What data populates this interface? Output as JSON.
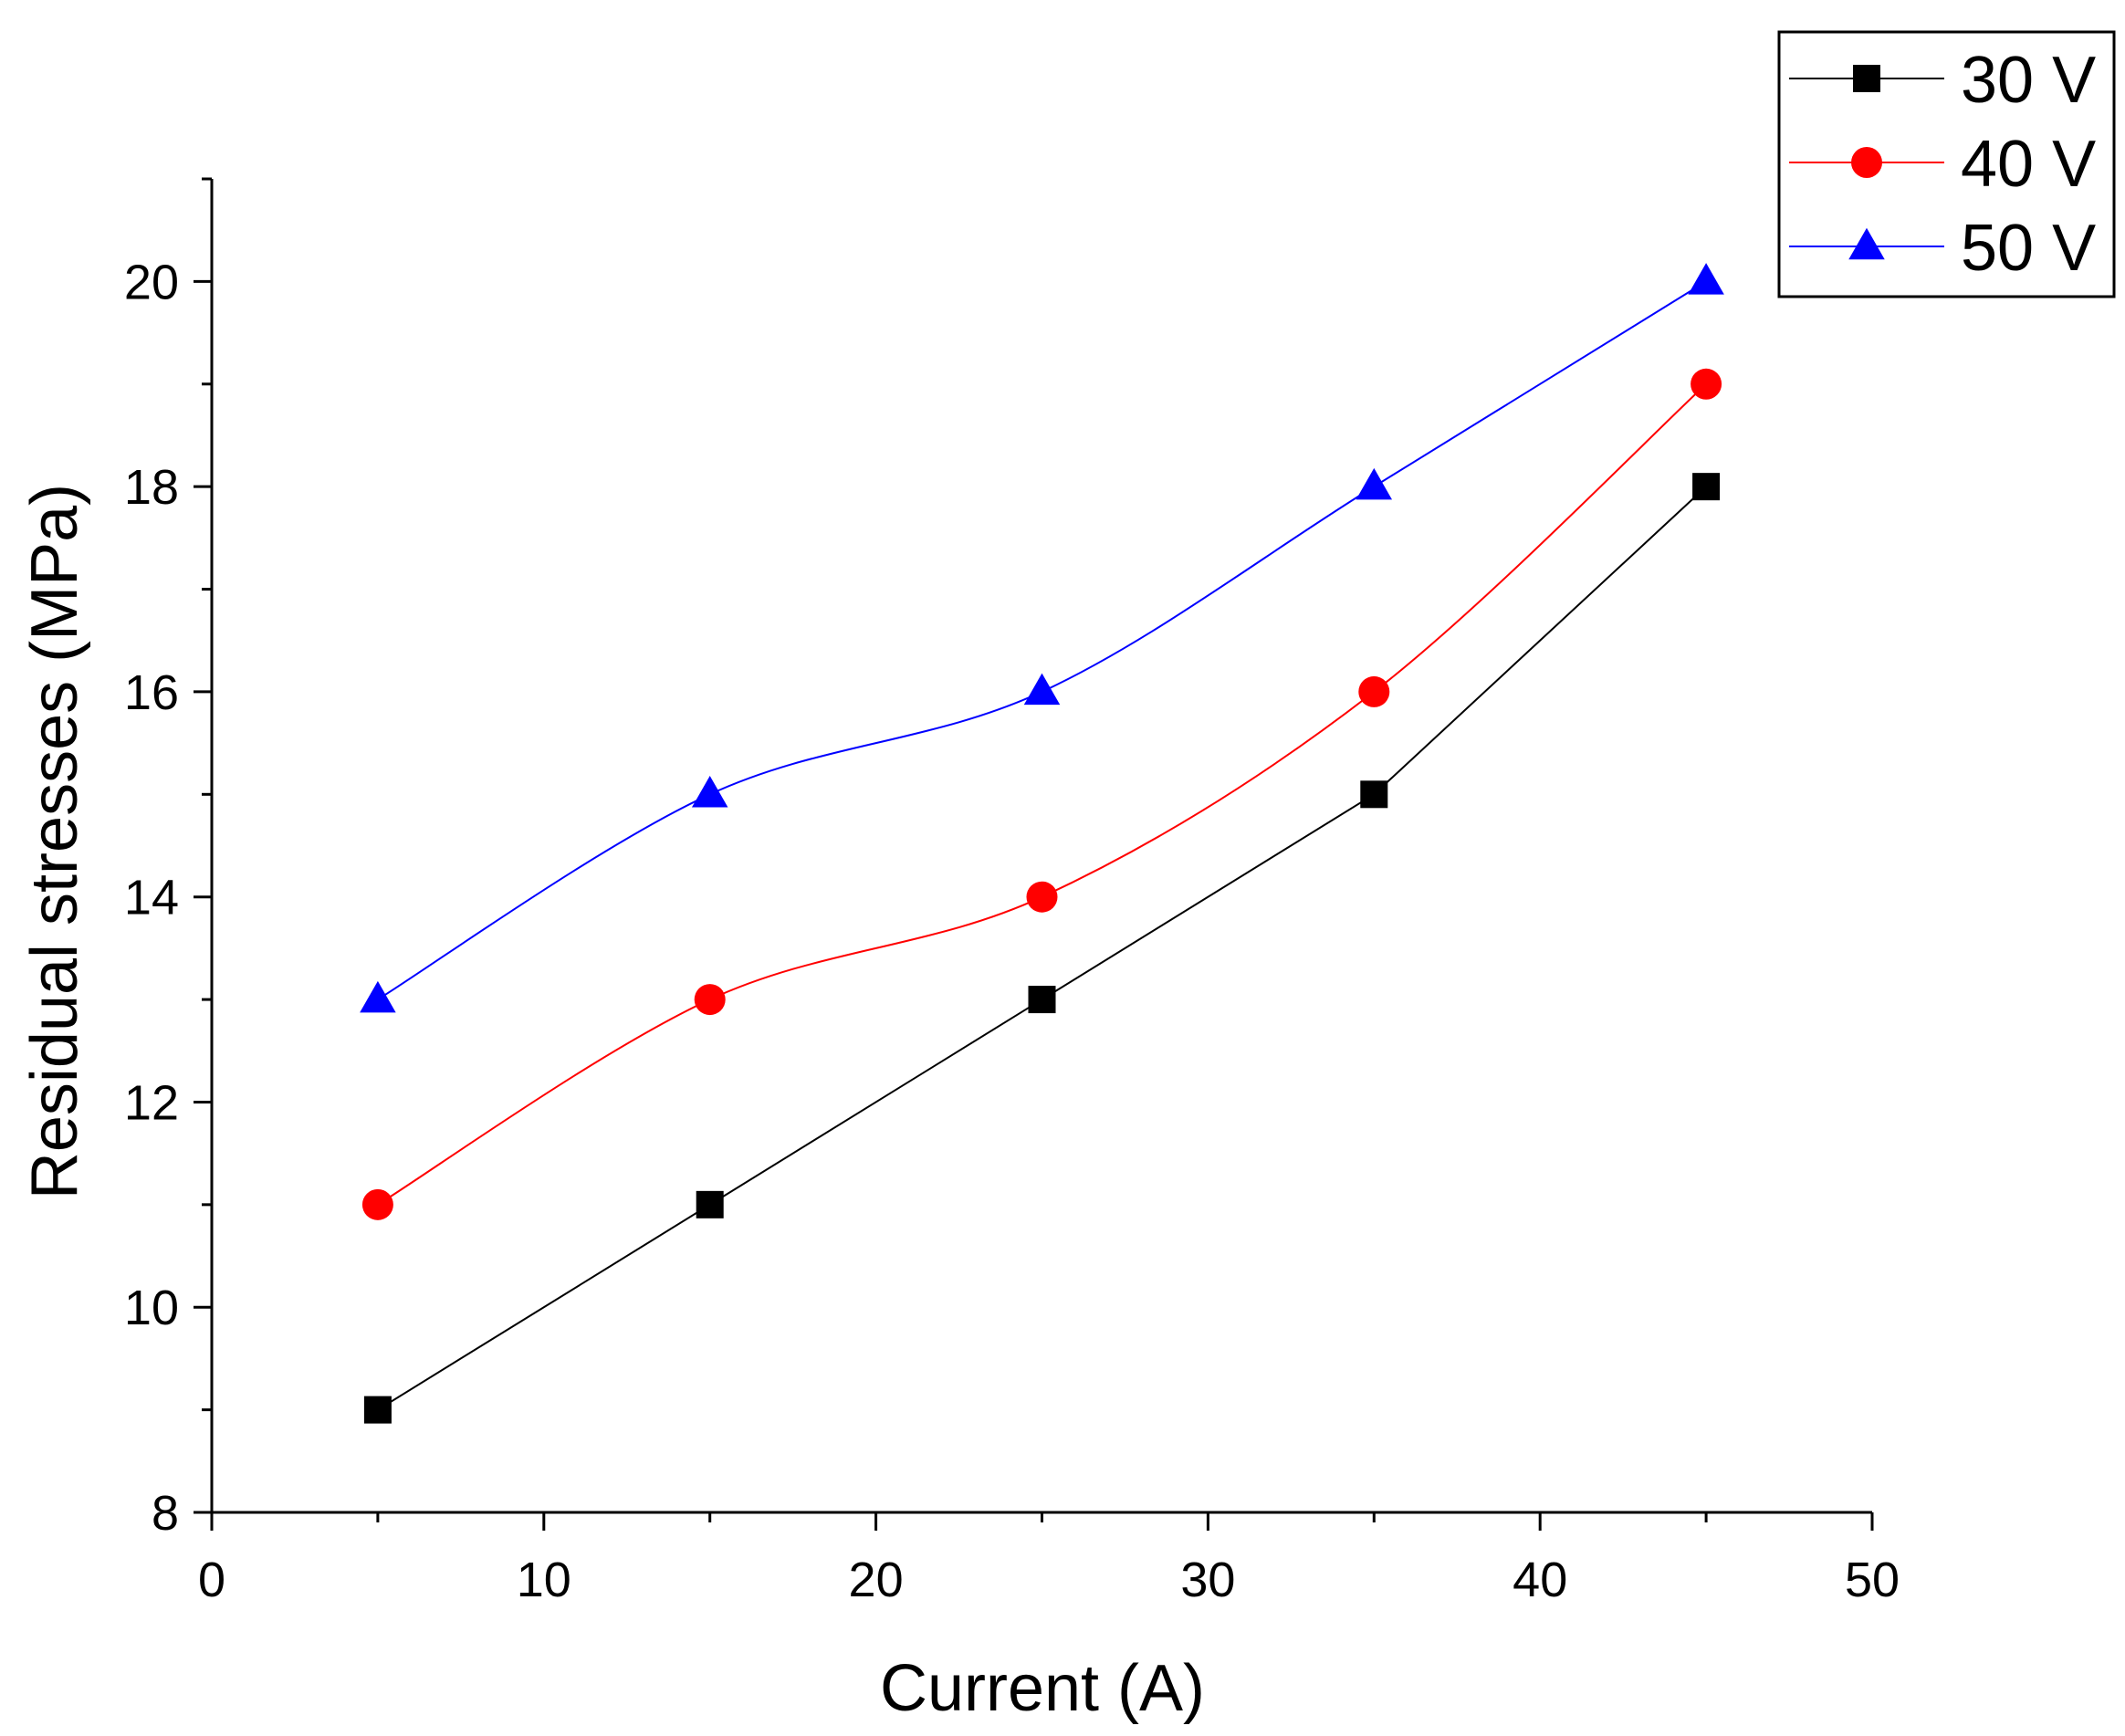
{
  "chart_data": {
    "type": "line",
    "title": "",
    "xlabel": "Current (A)",
    "ylabel": "Residual stresses (MPa)",
    "xlim": [
      0,
      50
    ],
    "ylim": [
      8,
      21
    ],
    "xticks": [
      0,
      10,
      20,
      30,
      40,
      50
    ],
    "yticks": [
      8,
      10,
      12,
      14,
      16,
      18,
      20
    ],
    "grid": false,
    "legend_position": "top-right",
    "x": [
      5,
      15,
      25,
      35,
      45
    ],
    "series": [
      {
        "name": "30 V",
        "marker": "square",
        "color": "#000000",
        "smooth": false,
        "values": [
          9,
          11,
          13,
          15,
          18
        ]
      },
      {
        "name": "40 V",
        "marker": "circle",
        "color": "#ff0000",
        "smooth": true,
        "values": [
          11,
          13,
          14,
          16,
          19
        ]
      },
      {
        "name": "50 V",
        "marker": "triangle",
        "color": "#0000ff",
        "smooth": true,
        "values": [
          13,
          15,
          16,
          18,
          20
        ]
      }
    ]
  }
}
